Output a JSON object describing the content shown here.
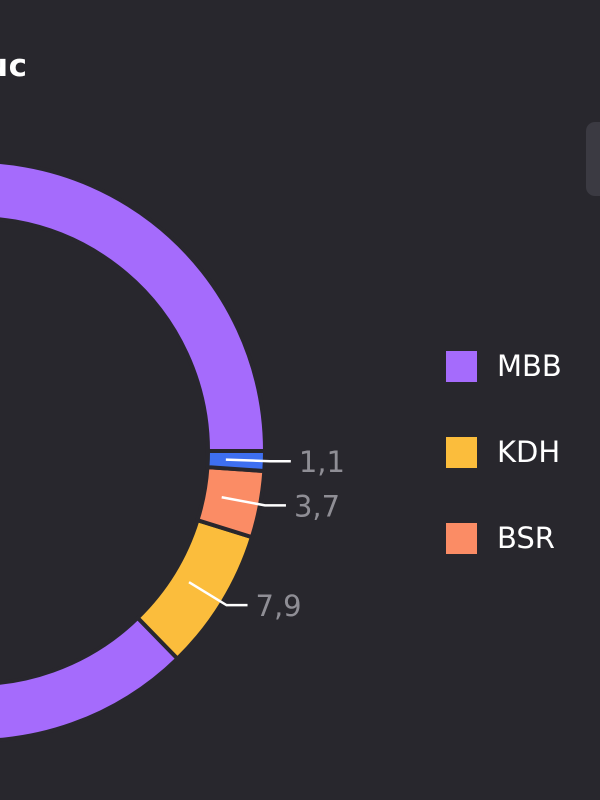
{
  "title": "ục",
  "colors": {
    "background": "#28272d",
    "gap": "#28272d",
    "value_label": "#8f8e95",
    "leader_line": "#ffffff"
  },
  "chart_data": {
    "type": "pie",
    "variant": "donut",
    "categories": [
      "MBB",
      "KDH",
      "BSR",
      ""
    ],
    "values": [
      87.3,
      7.9,
      3.7,
      1.1
    ],
    "value_labels": [
      "",
      "7,9",
      "3,7",
      "1,1"
    ],
    "colors": [
      "#a56bfc",
      "#fbbd3c",
      "#fb8c65",
      "#3e6ff0"
    ],
    "legend": {
      "position": "right",
      "entries": [
        {
          "label": "MBB",
          "color": "#a56bfc"
        },
        {
          "label": "KDH",
          "color": "#fbbd3c"
        },
        {
          "label": "BSR",
          "color": "#fb8c65"
        }
      ]
    }
  }
}
